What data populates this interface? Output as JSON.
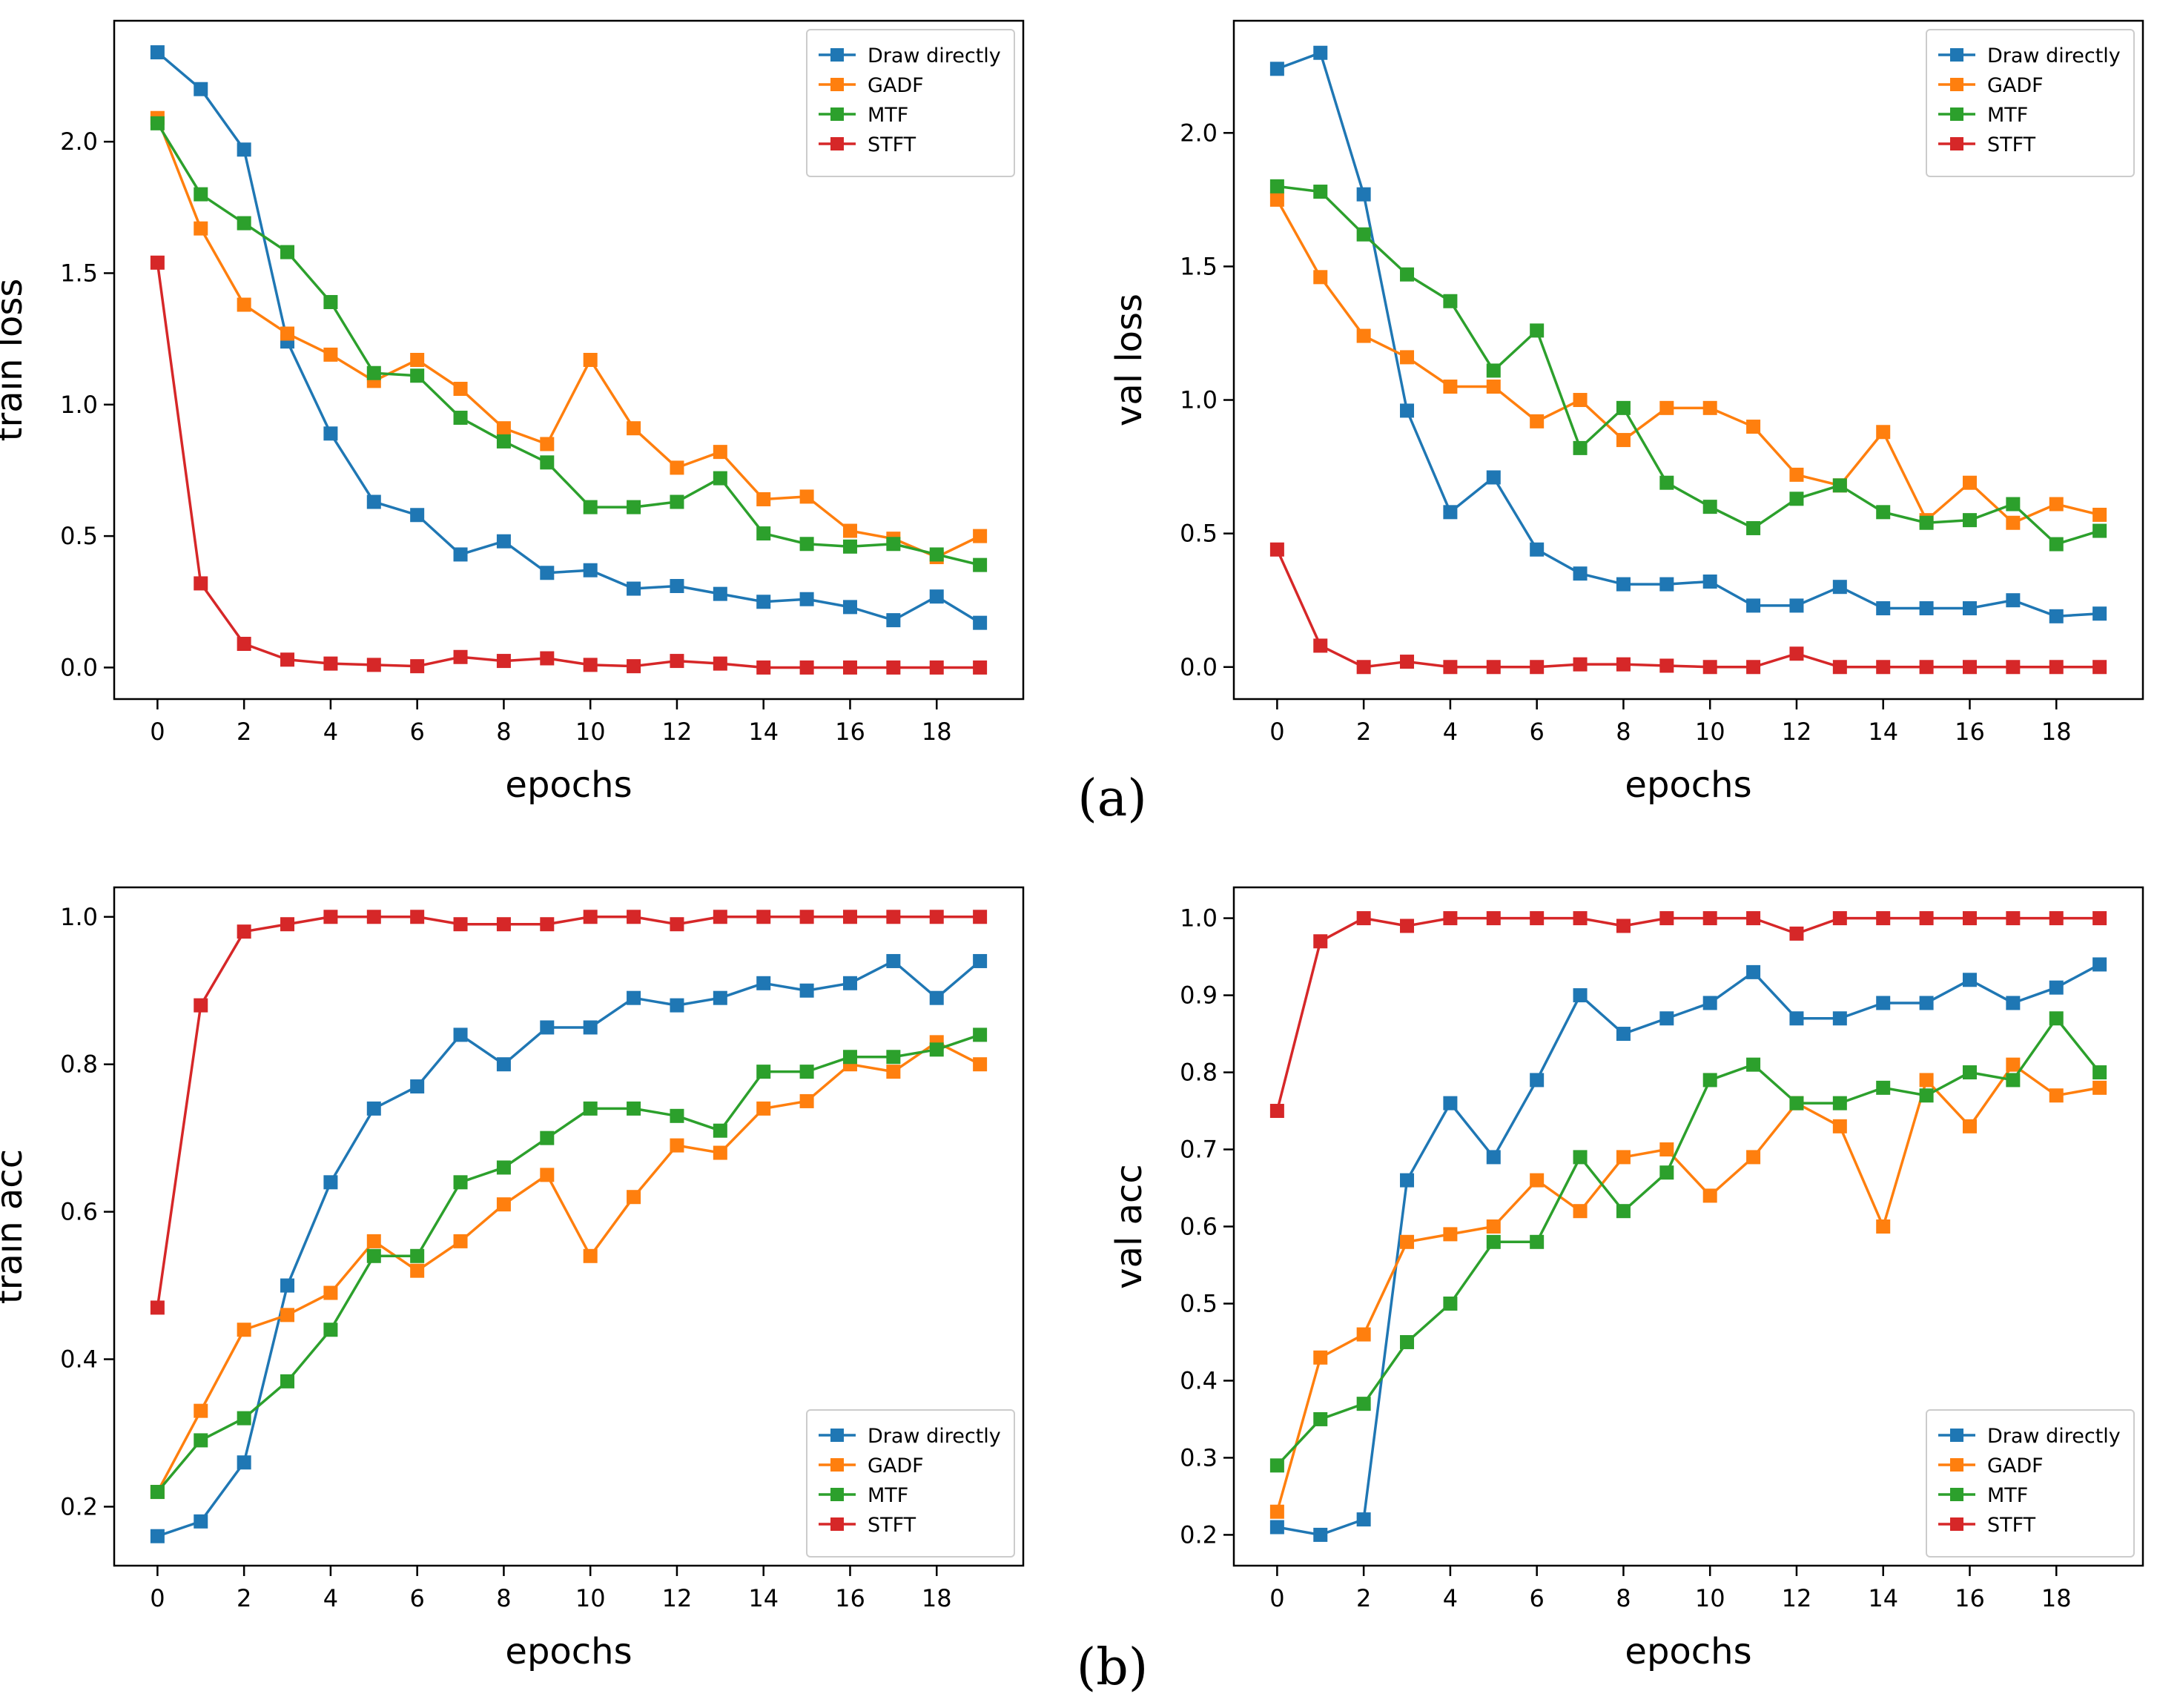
{
  "figure": {
    "captions": [
      "(a)",
      "(b)"
    ]
  },
  "colors": {
    "Draw directly": "#1f77b4",
    "GADF": "#ff7f0e",
    "MTF": "#2ca02c",
    "STFT": "#d62728"
  },
  "chart_data": [
    {
      "type": "line",
      "title": "",
      "xlabel": "epochs",
      "ylabel": "train loss",
      "x": [
        0,
        1,
        2,
        3,
        4,
        5,
        6,
        7,
        8,
        9,
        10,
        11,
        12,
        13,
        14,
        15,
        16,
        17,
        18,
        19
      ],
      "xlim": [
        -1,
        20
      ],
      "ylim": [
        -0.12,
        2.46
      ],
      "xticks": [
        0,
        2,
        4,
        6,
        8,
        10,
        12,
        14,
        16,
        18
      ],
      "yticks": [
        0.0,
        0.5,
        1.0,
        1.5,
        2.0
      ],
      "ytick_labels": [
        "0.0",
        "0.5",
        "1.0",
        "1.5",
        "2.0"
      ],
      "legend": "top-right",
      "series": [
        {
          "name": "Draw directly",
          "values": [
            2.34,
            2.2,
            1.97,
            1.24,
            0.89,
            0.63,
            0.58,
            0.43,
            0.48,
            0.36,
            0.37,
            0.3,
            0.31,
            0.28,
            0.25,
            0.26,
            0.23,
            0.18,
            0.27,
            0.17
          ]
        },
        {
          "name": "GADF",
          "values": [
            2.09,
            1.67,
            1.38,
            1.27,
            1.19,
            1.09,
            1.17,
            1.06,
            0.91,
            0.85,
            1.17,
            0.91,
            0.76,
            0.82,
            0.64,
            0.65,
            0.52,
            0.49,
            0.42,
            0.5
          ]
        },
        {
          "name": "MTF",
          "values": [
            2.07,
            1.8,
            1.69,
            1.58,
            1.39,
            1.12,
            1.11,
            0.95,
            0.86,
            0.78,
            0.61,
            0.61,
            0.63,
            0.72,
            0.51,
            0.47,
            0.46,
            0.47,
            0.43,
            0.39
          ]
        },
        {
          "name": "STFT",
          "values": [
            1.54,
            0.32,
            0.09,
            0.03,
            0.015,
            0.01,
            0.005,
            0.04,
            0.025,
            0.035,
            0.01,
            0.005,
            0.025,
            0.015,
            0.0,
            0.0,
            0.0,
            0.0,
            0.0,
            0.0
          ]
        }
      ]
    },
    {
      "type": "line",
      "title": "",
      "xlabel": "epochs",
      "ylabel": "val loss",
      "x": [
        0,
        1,
        2,
        3,
        4,
        5,
        6,
        7,
        8,
        9,
        10,
        11,
        12,
        13,
        14,
        15,
        16,
        17,
        18,
        19
      ],
      "xlim": [
        -1,
        20
      ],
      "ylim": [
        -0.12,
        2.42
      ],
      "xticks": [
        0,
        2,
        4,
        6,
        8,
        10,
        12,
        14,
        16,
        18
      ],
      "yticks": [
        0.0,
        0.5,
        1.0,
        1.5,
        2.0
      ],
      "ytick_labels": [
        "0.0",
        "0.5",
        "1.0",
        "1.5",
        "2.0"
      ],
      "legend": "top-right",
      "series": [
        {
          "name": "Draw directly",
          "values": [
            2.24,
            2.3,
            1.77,
            0.96,
            0.58,
            0.71,
            0.44,
            0.35,
            0.31,
            0.31,
            0.32,
            0.23,
            0.23,
            0.3,
            0.22,
            0.22,
            0.22,
            0.25,
            0.19,
            0.2
          ]
        },
        {
          "name": "GADF",
          "values": [
            1.75,
            1.46,
            1.24,
            1.16,
            1.05,
            1.05,
            0.92,
            1.0,
            0.85,
            0.97,
            0.97,
            0.9,
            0.72,
            0.68,
            0.88,
            0.55,
            0.69,
            0.54,
            0.61,
            0.57
          ]
        },
        {
          "name": "MTF",
          "values": [
            1.8,
            1.78,
            1.62,
            1.47,
            1.37,
            1.11,
            1.26,
            0.82,
            0.97,
            0.69,
            0.6,
            0.52,
            0.63,
            0.68,
            0.58,
            0.54,
            0.55,
            0.61,
            0.46,
            0.51
          ]
        },
        {
          "name": "STFT",
          "values": [
            0.44,
            0.08,
            0.0,
            0.02,
            0.0,
            0.0,
            0.0,
            0.01,
            0.01,
            0.005,
            0.0,
            0.0,
            0.05,
            0.0,
            0.0,
            0.0,
            0.0,
            0.0,
            0.0,
            0.0
          ]
        }
      ]
    },
    {
      "type": "line",
      "title": "",
      "xlabel": "epochs",
      "ylabel": "train acc",
      "x": [
        0,
        1,
        2,
        3,
        4,
        5,
        6,
        7,
        8,
        9,
        10,
        11,
        12,
        13,
        14,
        15,
        16,
        17,
        18,
        19
      ],
      "xlim": [
        -1,
        20
      ],
      "ylim": [
        0.12,
        1.04
      ],
      "xticks": [
        0,
        2,
        4,
        6,
        8,
        10,
        12,
        14,
        16,
        18
      ],
      "yticks": [
        0.2,
        0.4,
        0.6,
        0.8,
        1.0
      ],
      "ytick_labels": [
        "0.2",
        "0.4",
        "0.6",
        "0.8",
        "1.0"
      ],
      "legend": "bottom-right",
      "series": [
        {
          "name": "Draw directly",
          "values": [
            0.16,
            0.18,
            0.26,
            0.5,
            0.64,
            0.74,
            0.77,
            0.84,
            0.8,
            0.85,
            0.85,
            0.89,
            0.88,
            0.89,
            0.91,
            0.9,
            0.91,
            0.94,
            0.89,
            0.94
          ]
        },
        {
          "name": "GADF",
          "values": [
            0.22,
            0.33,
            0.44,
            0.46,
            0.49,
            0.56,
            0.52,
            0.56,
            0.61,
            0.65,
            0.54,
            0.62,
            0.69,
            0.68,
            0.74,
            0.75,
            0.8,
            0.79,
            0.83,
            0.8
          ]
        },
        {
          "name": "MTF",
          "values": [
            0.22,
            0.29,
            0.32,
            0.37,
            0.44,
            0.54,
            0.54,
            0.64,
            0.66,
            0.7,
            0.74,
            0.74,
            0.73,
            0.71,
            0.79,
            0.79,
            0.81,
            0.81,
            0.82,
            0.84
          ]
        },
        {
          "name": "STFT",
          "values": [
            0.47,
            0.88,
            0.98,
            0.99,
            1.0,
            1.0,
            1.0,
            0.99,
            0.99,
            0.99,
            1.0,
            1.0,
            0.99,
            1.0,
            1.0,
            1.0,
            1.0,
            1.0,
            1.0,
            1.0
          ]
        }
      ]
    },
    {
      "type": "line",
      "title": "",
      "xlabel": "epochs",
      "ylabel": "val acc",
      "x": [
        0,
        1,
        2,
        3,
        4,
        5,
        6,
        7,
        8,
        9,
        10,
        11,
        12,
        13,
        14,
        15,
        16,
        17,
        18,
        19
      ],
      "xlim": [
        -1,
        20
      ],
      "ylim": [
        0.16,
        1.04
      ],
      "xticks": [
        0,
        2,
        4,
        6,
        8,
        10,
        12,
        14,
        16,
        18
      ],
      "yticks": [
        0.2,
        0.3,
        0.4,
        0.5,
        0.6,
        0.7,
        0.8,
        0.9,
        1.0
      ],
      "ytick_labels": [
        "0.2",
        "0.3",
        "0.4",
        "0.5",
        "0.6",
        "0.7",
        "0.8",
        "0.9",
        "1.0"
      ],
      "legend": "bottom-right",
      "series": [
        {
          "name": "Draw directly",
          "values": [
            0.21,
            0.2,
            0.22,
            0.66,
            0.76,
            0.69,
            0.79,
            0.9,
            0.85,
            0.87,
            0.89,
            0.93,
            0.87,
            0.87,
            0.89,
            0.89,
            0.92,
            0.89,
            0.91,
            0.94
          ]
        },
        {
          "name": "GADF",
          "values": [
            0.23,
            0.43,
            0.46,
            0.58,
            0.59,
            0.6,
            0.66,
            0.62,
            0.69,
            0.7,
            0.64,
            0.69,
            0.76,
            0.73,
            0.6,
            0.79,
            0.73,
            0.81,
            0.77,
            0.78
          ]
        },
        {
          "name": "MTF",
          "values": [
            0.29,
            0.35,
            0.37,
            0.45,
            0.5,
            0.58,
            0.58,
            0.69,
            0.62,
            0.67,
            0.79,
            0.81,
            0.76,
            0.76,
            0.78,
            0.77,
            0.8,
            0.79,
            0.87,
            0.8
          ]
        },
        {
          "name": "STFT",
          "values": [
            0.75,
            0.97,
            1.0,
            0.99,
            1.0,
            1.0,
            1.0,
            1.0,
            0.99,
            1.0,
            1.0,
            1.0,
            0.98,
            1.0,
            1.0,
            1.0,
            1.0,
            1.0,
            1.0,
            1.0
          ]
        }
      ]
    }
  ]
}
